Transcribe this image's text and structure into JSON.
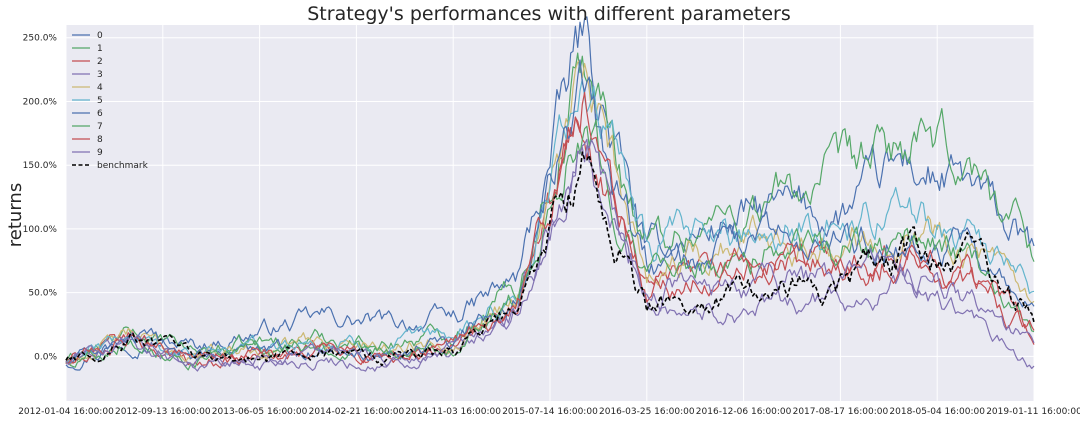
{
  "chart_data": {
    "type": "line",
    "title": "Strategy's performances with different parameters",
    "ylabel": "returns",
    "xlabel": "",
    "x_ticks": [
      "2012-01-04 16:00:00",
      "2012-09-13 16:00:00",
      "2013-06-05 16:00:00",
      "2014-02-21 16:00:00",
      "2014-11-03 16:00:00",
      "2015-07-14 16:00:00",
      "2016-03-25 16:00:00",
      "2016-12-06 16:00:00",
      "2017-08-17 16:00:00",
      "2018-05-04 16:00:00",
      "2019-01-11 16:00:00"
    ],
    "y_ticks": [
      "0.0%",
      "50.0%",
      "100.0%",
      "150.0%",
      "200.0%",
      "250.0%"
    ],
    "y_tick_values": [
      0,
      50,
      100,
      150,
      200,
      250
    ],
    "ylim": [
      -35,
      260
    ],
    "grid": true,
    "legend_position": "top-left",
    "series": [
      {
        "name": "0",
        "color": "#4c72b0",
        "values": [
          -5,
          15,
          8,
          20,
          30,
          25,
          30,
          60,
          250,
          80,
          100,
          115,
          110,
          150,
          130,
          80
        ]
      },
      {
        "name": "1",
        "color": "#55a868",
        "values": [
          -4,
          17,
          4,
          10,
          15,
          10,
          20,
          55,
          235,
          90,
          105,
          125,
          140,
          165,
          150,
          90
        ]
      },
      {
        "name": "2",
        "color": "#c44e52",
        "values": [
          -5,
          14,
          -4,
          0,
          5,
          -3,
          5,
          40,
          185,
          50,
          60,
          70,
          75,
          80,
          60,
          18
        ]
      },
      {
        "name": "3",
        "color": "#8172b2",
        "values": [
          -5,
          13,
          -5,
          -5,
          -2,
          -8,
          0,
          35,
          160,
          45,
          35,
          40,
          45,
          55,
          30,
          -12
        ]
      },
      {
        "name": "4",
        "color": "#ccb974",
        "values": [
          -5,
          16,
          0,
          8,
          12,
          8,
          15,
          50,
          215,
          70,
          85,
          100,
          95,
          105,
          90,
          35
        ]
      },
      {
        "name": "5",
        "color": "#64b5cd",
        "values": [
          -5,
          16,
          0,
          8,
          12,
          6,
          15,
          50,
          225,
          85,
          95,
          105,
          105,
          115,
          100,
          45
        ]
      },
      {
        "name": "6",
        "color": "#4c72b0",
        "values": [
          -5,
          15,
          0,
          5,
          8,
          4,
          10,
          48,
          205,
          70,
          75,
          90,
          85,
          100,
          80,
          30
        ]
      },
      {
        "name": "7",
        "color": "#55a868",
        "values": [
          -5,
          15,
          -2,
          5,
          8,
          2,
          10,
          46,
          200,
          65,
          70,
          85,
          80,
          90,
          75,
          25
        ]
      },
      {
        "name": "8",
        "color": "#c44e52",
        "values": [
          -5,
          14,
          -3,
          2,
          5,
          -2,
          8,
          42,
          190,
          55,
          65,
          75,
          78,
          85,
          65,
          22
        ]
      },
      {
        "name": "9",
        "color": "#8172b2",
        "values": [
          -5,
          14,
          -6,
          -2,
          2,
          -5,
          3,
          38,
          170,
          55,
          50,
          60,
          62,
          70,
          45,
          10
        ]
      },
      {
        "name": "benchmark",
        "color": "#000000",
        "dashed": true,
        "values": [
          -5,
          14,
          -1,
          0,
          2,
          -2,
          5,
          40,
          155,
          40,
          45,
          55,
          60,
          80,
          80,
          30
        ]
      }
    ]
  }
}
